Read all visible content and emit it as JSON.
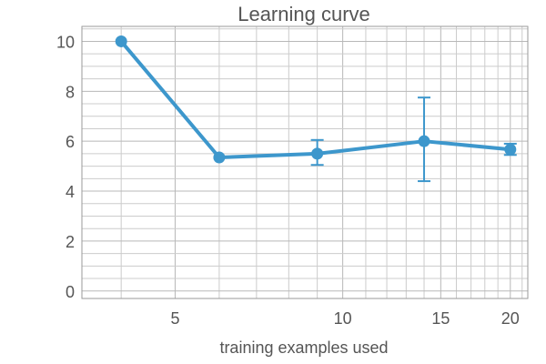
{
  "chart_data": {
    "type": "line",
    "title": "Learning curve",
    "xlabel": "training examples used",
    "ylabel": "",
    "x_scale": "log",
    "xlim": [
      3.4,
      21.5
    ],
    "ylim": [
      -0.3,
      10.6
    ],
    "x_ticks": [
      5,
      10,
      15,
      20
    ],
    "y_ticks": [
      0,
      2,
      4,
      6,
      8,
      10
    ],
    "grid": true,
    "color": "#3d97cc",
    "series": [
      {
        "points": [
          {
            "x": 4,
            "y": 10.0,
            "err_low": 10.0,
            "err_high": 10.0
          },
          {
            "x": 6,
            "y": 5.35,
            "err_low": 5.35,
            "err_high": 5.35
          },
          {
            "x": 9,
            "y": 5.5,
            "err_low": 5.05,
            "err_high": 6.05
          },
          {
            "x": 14,
            "y": 6.0,
            "err_low": 4.4,
            "err_high": 7.75
          },
          {
            "x": 20,
            "y": 5.67,
            "err_low": 5.45,
            "err_high": 5.9
          }
        ]
      }
    ]
  }
}
